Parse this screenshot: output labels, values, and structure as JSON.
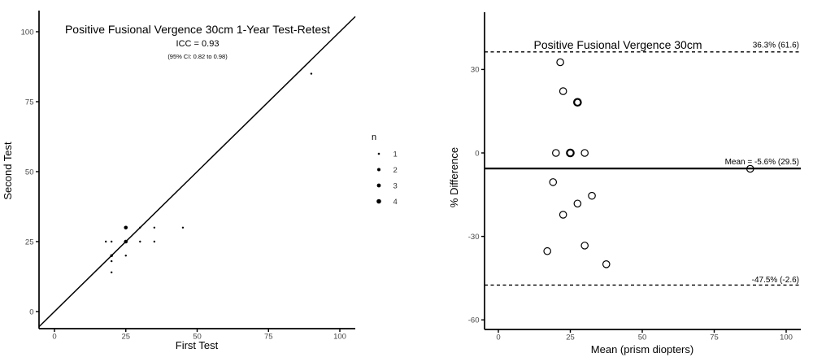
{
  "colors": {
    "background": "#ffffff",
    "axis_line": "#000000",
    "tick_label": "#464646",
    "point": "#000000"
  },
  "chart_data": [
    {
      "type": "scatter",
      "title": "Positive Fusional Vergence 30cm 1-Year Test-Retest",
      "subtitle": "ICC = 0.93",
      "subtitle2": "(95% CI: 0.82 to 0.98)",
      "xlabel": "First Test",
      "ylabel": "Second Test",
      "xticks": [
        0,
        25,
        50,
        75,
        100
      ],
      "yticks": [
        0,
        25,
        50,
        75,
        100
      ],
      "xlim": [
        -5.5,
        105.5
      ],
      "ylim": [
        -6,
        107
      ],
      "grid": false,
      "identity_line": true,
      "legend": {
        "title": "n",
        "position": "right",
        "sizes": [
          1,
          2,
          3,
          4
        ]
      },
      "points": [
        {
          "x": 18,
          "y": 25,
          "n": 1
        },
        {
          "x": 20,
          "y": 25,
          "n": 1
        },
        {
          "x": 25,
          "y": 25,
          "n": 3
        },
        {
          "x": 30,
          "y": 25,
          "n": 1
        },
        {
          "x": 35,
          "y": 25,
          "n": 1
        },
        {
          "x": 25,
          "y": 30,
          "n": 3
        },
        {
          "x": 30,
          "y": 30,
          "n": 1
        },
        {
          "x": 35,
          "y": 30,
          "n": 1
        },
        {
          "x": 45,
          "y": 30,
          "n": 1
        },
        {
          "x": 20,
          "y": 20,
          "n": 2
        },
        {
          "x": 25,
          "y": 20,
          "n": 1
        },
        {
          "x": 20,
          "y": 18,
          "n": 1
        },
        {
          "x": 20,
          "y": 14,
          "n": 1
        },
        {
          "x": 90,
          "y": 85,
          "n": 1
        }
      ]
    },
    {
      "type": "scatter",
      "subtype": "bland-altman",
      "title": "Positive Fusional Vergence 30cm",
      "xlabel": "Mean (prism diopters)",
      "ylabel": "% Difference",
      "xticks": [
        0,
        25,
        50,
        75,
        100
      ],
      "yticks": [
        30,
        0,
        -30,
        -60
      ],
      "xlim": [
        -4.8,
        105
      ],
      "ylim": [
        -63.5,
        50.5
      ],
      "grid": false,
      "hlines": [
        {
          "value": 36.3,
          "style": "dashed",
          "label": "36.3% (61.6)"
        },
        {
          "value": -5.6,
          "style": "solid",
          "label": "Mean = -5.6% (29.5)"
        },
        {
          "value": -47.5,
          "style": "dashed",
          "label": "-47.5% (-2.6)"
        }
      ],
      "points": [
        {
          "x": 21.5,
          "y": 32.6,
          "bold": false
        },
        {
          "x": 22.5,
          "y": 22.2,
          "bold": false
        },
        {
          "x": 27.5,
          "y": 18.2,
          "bold": true
        },
        {
          "x": 20,
          "y": 0,
          "bold": false
        },
        {
          "x": 25,
          "y": 0,
          "bold": true
        },
        {
          "x": 30,
          "y": 0,
          "bold": false
        },
        {
          "x": 87.5,
          "y": -5.7,
          "bold": false
        },
        {
          "x": 19,
          "y": -10.5,
          "bold": false
        },
        {
          "x": 32.5,
          "y": -15.4,
          "bold": false
        },
        {
          "x": 27.5,
          "y": -18.2,
          "bold": false
        },
        {
          "x": 22.5,
          "y": -22.2,
          "bold": false
        },
        {
          "x": 30,
          "y": -33.3,
          "bold": false
        },
        {
          "x": 17,
          "y": -35.3,
          "bold": false
        },
        {
          "x": 37.5,
          "y": -40,
          "bold": false
        }
      ]
    }
  ]
}
